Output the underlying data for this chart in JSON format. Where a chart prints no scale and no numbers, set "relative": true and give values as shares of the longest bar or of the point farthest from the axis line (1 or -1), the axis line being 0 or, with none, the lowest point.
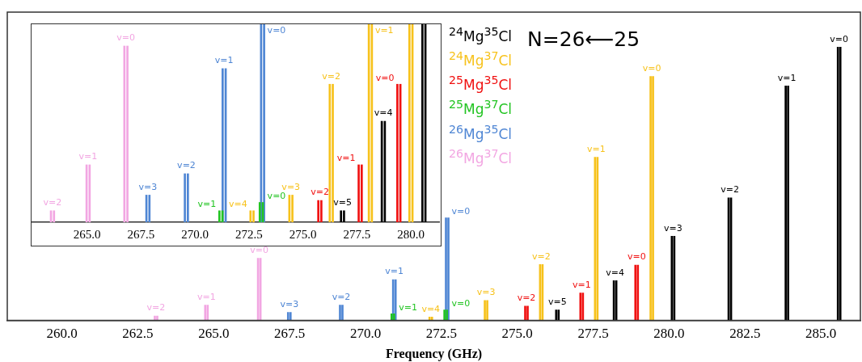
{
  "chart_data": [
    {
      "type": "bar",
      "relative": true,
      "xlabel": "Frequency (GHz)",
      "legend": "top",
      "tick_labels": "x",
      "xlim": [
        258.2,
        286.3
      ],
      "xticks": [
        {
          "value": 260,
          "label": "260.0"
        },
        {
          "value": 262.5,
          "label": "262.5"
        },
        {
          "value": 265,
          "label": "265.0"
        },
        {
          "value": 267.5,
          "label": "267.5"
        },
        {
          "value": 270,
          "label": "270.0"
        },
        {
          "value": 272.5,
          "label": "272.5"
        },
        {
          "value": 275,
          "label": "275.0"
        },
        {
          "value": 277.5,
          "label": "277.5"
        },
        {
          "value": 280,
          "label": "280.0"
        },
        {
          "value": 282.5,
          "label": "282.5"
        },
        {
          "value": 285,
          "label": "285.0"
        }
      ],
      "series": [
        {
          "name": "$^{24}$Mg$^{35}$Cl",
          "color": "#000000",
          "x": [
            276.28,
            276.36,
            278.18,
            278.26,
            280.09,
            280.17,
            281.96,
            282.04,
            283.84,
            283.92,
            285.56,
            285.64
          ],
          "values": [
            0.038,
            0.038,
            0.145,
            0.145,
            0.308,
            0.308,
            0.448,
            0.448,
            0.858,
            0.858,
            1,
            1
          ]
        },
        {
          "name": "$^{24}$Mg$^{37}$Cl",
          "color": "#f7c21c",
          "x": [
            272.11,
            272.19,
            273.93,
            274.01,
            275.75,
            275.83,
            277.56,
            277.64,
            279.39,
            279.47
          ],
          "values": [
            0.012,
            0.012,
            0.073,
            0.073,
            0.204,
            0.204,
            0.597,
            0.597,
            0.893,
            0.893
          ]
        },
        {
          "name": "$^{25}$Mg$^{35}$Cl",
          "color": "#f01010",
          "x": [
            275.26,
            275.34,
            277.08,
            277.16,
            278.89,
            278.97
          ],
          "values": [
            0.052,
            0.052,
            0.1,
            0.1,
            0.202,
            0.202
          ]
        },
        {
          "name": "$^{25}$Mg$^{37}$Cl",
          "color": "#22c422",
          "x": [
            270.86,
            270.94,
            272.6,
            272.68
          ],
          "values": [
            0.024,
            0.024,
            0.038,
            0.038
          ]
        },
        {
          "name": "$^{26}$Mg$^{35}$Cl",
          "color": "#4f86d4",
          "x": [
            267.45,
            267.53,
            269.16,
            269.24,
            270.91,
            270.99,
            272.65,
            272.73
          ],
          "values": [
            0.029,
            0.029,
            0.056,
            0.056,
            0.149,
            0.149,
            0.375,
            0.375
          ]
        },
        {
          "name": "$^{26}$Mg$^{37}$Cl",
          "color": "#f2a6e2",
          "x": [
            263.06,
            263.14,
            264.72,
            264.8,
            266.46,
            266.54
          ],
          "values": [
            0.016,
            0.016,
            0.056,
            0.056,
            0.227,
            0.227
          ]
        }
      ],
      "annotations": [
        "N=26⟵25",
        {
          "text": "v=5",
          "x": 276.32,
          "y": 0.038
        },
        {
          "text": "v=4",
          "x": 278.22,
          "y": 0.145
        },
        {
          "text": "v=3",
          "x": 280.13,
          "y": 0.308
        },
        {
          "text": "v=2",
          "x": 282.0,
          "y": 0.448
        },
        {
          "text": "v=1",
          "x": 283.88,
          "y": 0.858
        },
        {
          "text": "v=0",
          "x": 285.6,
          "y": 1
        },
        {
          "text": "v=4",
          "x": 272.15,
          "y": 0.012
        },
        {
          "text": "v=3",
          "x": 273.97,
          "y": 0.073
        },
        {
          "text": "v=2",
          "x": 275.79,
          "y": 0.204
        },
        {
          "text": "v=1",
          "x": 277.6,
          "y": 0.597
        },
        {
          "text": "v=0",
          "x": 279.43,
          "y": 0.893
        },
        {
          "text": "v=2",
          "x": 275.3,
          "y": 0.052
        },
        {
          "text": "v=1",
          "x": 277.12,
          "y": 0.1
        },
        {
          "text": "v=0",
          "x": 278.93,
          "y": 0.202
        },
        {
          "text": "v=1",
          "x": 270.9,
          "y": 0.024
        },
        {
          "text": "v=0",
          "x": 272.64,
          "y": 0.038
        },
        {
          "text": "v=3",
          "x": 267.49,
          "y": 0.029
        },
        {
          "text": "v=2",
          "x": 269.2,
          "y": 0.056
        },
        {
          "text": "v=1",
          "x": 270.95,
          "y": 0.149
        },
        {
          "text": "v=0",
          "x": 272.69,
          "y": 0.375
        },
        {
          "text": "v=2",
          "x": 263.1,
          "y": 0.016
        },
        {
          "text": "v=1",
          "x": 264.76,
          "y": 0.056
        },
        {
          "text": "v=0",
          "x": 266.5,
          "y": 0.227
        }
      ]
    },
    {
      "type": "bar",
      "relative": true,
      "tick_labels": "x",
      "xlim": [
        262.43,
        281.34
      ],
      "xticks": [
        {
          "value": 265,
          "label": "265.0"
        },
        {
          "value": 267.5,
          "label": "267.5"
        },
        {
          "value": 270,
          "label": "270.0"
        },
        {
          "value": 272.5,
          "label": "272.5"
        },
        {
          "value": 275,
          "label": "275.0"
        },
        {
          "value": 277.5,
          "label": "277.5"
        },
        {
          "value": 280,
          "label": "280.0"
        }
      ],
      "series": [
        {
          "color": "#000000",
          "x": [
            276.76,
            276.9,
            278.65,
            278.79,
            280.53,
            280.67
          ],
          "values": [
            0.058,
            0.058,
            0.51,
            0.51,
            1,
            1
          ]
        },
        {
          "color": "#f7c21c",
          "x": [
            272.57,
            272.71,
            274.37,
            274.51,
            276.24,
            276.38,
            278.05,
            278.19,
            279.93,
            280.07
          ],
          "values": [
            0.058,
            0.058,
            0.137,
            0.137,
            0.697,
            0.697,
            1,
            1,
            1,
            1
          ]
        },
        {
          "color": "#f01010",
          "x": [
            275.71,
            275.85,
            277.58,
            277.72,
            279.37,
            279.51
          ],
          "values": [
            0.11,
            0.11,
            0.29,
            0.29,
            0.697,
            0.697
          ]
        },
        {
          "color": "#22c422",
          "x": [
            271.13,
            271.27,
            273.0,
            273.14
          ],
          "values": [
            0.058,
            0.058,
            0.1,
            0.1
          ]
        },
        {
          "color": "#4f86d4",
          "x": [
            267.75,
            267.89,
            269.53,
            269.67,
            271.28,
            271.42,
            273.06,
            273.2
          ],
          "values": [
            0.137,
            0.137,
            0.245,
            0.245,
            0.776,
            0.776,
            1,
            1
          ]
        },
        {
          "color": "#f2a6e2",
          "x": [
            263.33,
            263.47,
            264.98,
            265.12,
            266.73,
            266.87
          ],
          "values": [
            0.058,
            0.058,
            0.29,
            0.29,
            0.89,
            0.89
          ]
        }
      ],
      "annotations": [
        {
          "text": "v=5",
          "x": 276.83,
          "y": 0.058
        },
        {
          "text": "v=4",
          "x": 278.72,
          "y": 0.51
        },
        {
          "text": "v=4",
          "x": 272.64,
          "y": 0.058
        },
        {
          "text": "v=3",
          "x": 274.44,
          "y": 0.137
        },
        {
          "text": "v=2",
          "x": 276.31,
          "y": 0.697
        },
        {
          "text": "v=1",
          "x": 278.12,
          "y": 1
        },
        {
          "text": "v=2",
          "x": 275.78,
          "y": 0.11
        },
        {
          "text": "v=1",
          "x": 277.65,
          "y": 0.29
        },
        {
          "text": "v=0",
          "x": 279.44,
          "y": 0.697
        },
        {
          "text": "v=1",
          "x": 271.2,
          "y": 0.058
        },
        {
          "text": "v=0",
          "x": 273.07,
          "y": 0.1
        },
        {
          "text": "v=3",
          "x": 267.82,
          "y": 0.137
        },
        {
          "text": "v=2",
          "x": 269.6,
          "y": 0.245
        },
        {
          "text": "v=1",
          "x": 271.35,
          "y": 0.776
        },
        {
          "text": "v=0",
          "x": 273.13,
          "y": 1
        },
        {
          "text": "v=2",
          "x": 263.4,
          "y": 0.058
        },
        {
          "text": "v=1",
          "x": 265.05,
          "y": 0.29
        },
        {
          "text": "v=0",
          "x": 266.8,
          "y": 0.89
        }
      ]
    }
  ]
}
